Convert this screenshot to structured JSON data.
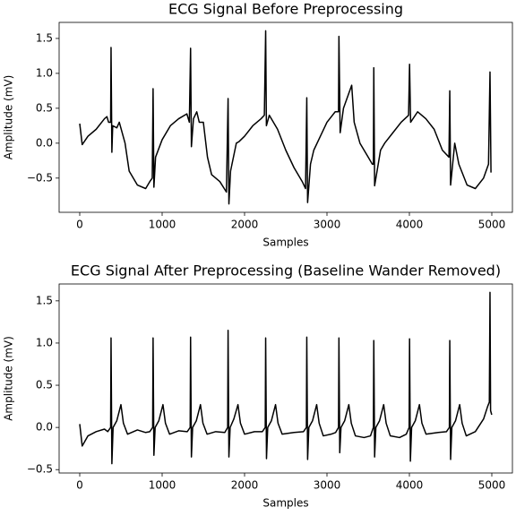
{
  "chart_data": [
    {
      "type": "line",
      "title": "ECG Signal Before Preprocessing",
      "xlabel": "Samples",
      "ylabel": "Amplitude (mV)",
      "color": "#000000",
      "grid": false,
      "xlim": [
        -250,
        5250
      ],
      "xticks": [
        0,
        1000,
        2000,
        3000,
        4000,
        5000
      ],
      "ylim": [
        -0.99,
        1.73
      ],
      "yticks": [
        {
          "value": -0.5,
          "label": "−0.5"
        },
        {
          "value": 0,
          "label": "0.0"
        },
        0.5,
        {
          "value": 1,
          "label": "1.0"
        },
        1.5
      ],
      "x": [
        0,
        30,
        100,
        200,
        300,
        330,
        350,
        375,
        380,
        390,
        400,
        450,
        480,
        550,
        600,
        700,
        800,
        850,
        880,
        890,
        900,
        920,
        1000,
        1100,
        1200,
        1300,
        1330,
        1345,
        1355,
        1380,
        1420,
        1450,
        1500,
        1550,
        1600,
        1700,
        1780,
        1800,
        1810,
        1830,
        1900,
        1930,
        2000,
        2100,
        2200,
        2240,
        2256,
        2265,
        2300,
        2400,
        2500,
        2600,
        2700,
        2740,
        2755,
        2765,
        2800,
        2840,
        2900,
        3000,
        3100,
        3140,
        3145,
        3160,
        3200,
        3300,
        3330,
        3400,
        3500,
        3550,
        3563,
        3568,
        3578,
        3650,
        3700,
        3800,
        3900,
        3990,
        4002,
        4015,
        4100,
        4200,
        4300,
        4400,
        4480,
        4490,
        4500,
        4550,
        4600,
        4700,
        4800,
        4900,
        4960,
        4978,
        4990
      ],
      "values": [
        0.28,
        -0.02,
        0.1,
        0.2,
        0.35,
        0.38,
        0.3,
        0.3,
        1.37,
        -0.13,
        0.25,
        0.22,
        0.3,
        0.0,
        -0.4,
        -0.6,
        -0.65,
        -0.55,
        -0.5,
        0.78,
        -0.63,
        -0.2,
        0.05,
        0.25,
        0.35,
        0.42,
        0.3,
        1.36,
        -0.05,
        0.35,
        0.45,
        0.3,
        0.3,
        -0.2,
        -0.45,
        -0.55,
        -0.7,
        0.64,
        -0.87,
        -0.4,
        0.0,
        0.02,
        0.1,
        0.25,
        0.35,
        0.4,
        1.61,
        0.25,
        0.4,
        0.2,
        -0.1,
        -0.35,
        -0.55,
        -0.65,
        0.65,
        -0.85,
        -0.3,
        -0.1,
        0.05,
        0.3,
        0.45,
        0.45,
        1.53,
        0.15,
        0.5,
        0.83,
        0.3,
        0.0,
        -0.2,
        -0.3,
        -0.3,
        1.08,
        -0.61,
        -0.1,
        0.0,
        0.15,
        0.3,
        0.4,
        1.13,
        0.3,
        0.45,
        0.35,
        0.2,
        -0.1,
        -0.2,
        0.75,
        -0.6,
        0.0,
        -0.3,
        -0.6,
        -0.65,
        -0.5,
        -0.3,
        1.02,
        -0.42
      ]
    },
    {
      "type": "line",
      "title": "ECG Signal After Preprocessing (Baseline Wander Removed)",
      "xlabel": "Samples",
      "ylabel": "Amplitude (mV)",
      "color": "#000000",
      "grid": false,
      "xlim": [
        -250,
        5250
      ],
      "xticks": [
        0,
        1000,
        2000,
        3000,
        4000,
        5000
      ],
      "ylim": [
        -0.54,
        1.7
      ],
      "yticks": [
        {
          "value": -0.5,
          "label": "−0.5"
        },
        {
          "value": 0,
          "label": "0.0"
        },
        0.5,
        {
          "value": 1,
          "label": "1.0"
        },
        1.5
      ],
      "x": [
        0,
        30,
        100,
        200,
        300,
        340,
        375,
        380,
        390,
        405,
        450,
        500,
        530,
        580,
        700,
        800,
        850,
        885,
        890,
        900,
        915,
        960,
        1010,
        1040,
        1090,
        1200,
        1305,
        1340,
        1345,
        1355,
        1370,
        1415,
        1465,
        1495,
        1545,
        1650,
        1760,
        1795,
        1800,
        1810,
        1825,
        1870,
        1920,
        1950,
        2000,
        2120,
        2216,
        2251,
        2256,
        2266,
        2281,
        2326,
        2376,
        2406,
        2456,
        2600,
        2715,
        2750,
        2755,
        2765,
        2780,
        2825,
        2875,
        2905,
        2955,
        3050,
        3105,
        3140,
        3145,
        3155,
        3170,
        3215,
        3265,
        3295,
        3345,
        3450,
        3528,
        3563,
        3568,
        3578,
        3593,
        3638,
        3688,
        3718,
        3768,
        3880,
        3962,
        3997,
        4002,
        4012,
        4027,
        4072,
        4122,
        4152,
        4202,
        4350,
        4450,
        4485,
        4490,
        4500,
        4515,
        4560,
        4610,
        4640,
        4690,
        4800,
        4900,
        4950,
        4970,
        4978,
        4985,
        4999
      ],
      "values": [
        0.04,
        -0.22,
        -0.1,
        -0.05,
        -0.02,
        -0.05,
        0.0,
        1.06,
        -0.43,
        0.0,
        0.08,
        0.27,
        0.05,
        -0.08,
        -0.03,
        -0.06,
        -0.05,
        0.0,
        1.06,
        -0.33,
        0.0,
        0.08,
        0.27,
        0.05,
        -0.08,
        -0.04,
        -0.05,
        0.0,
        1.07,
        -0.35,
        0.0,
        0.08,
        0.27,
        0.05,
        -0.08,
        -0.05,
        -0.06,
        0.0,
        1.15,
        -0.35,
        0.0,
        0.1,
        0.27,
        0.05,
        -0.08,
        -0.05,
        -0.05,
        0.0,
        1.06,
        -0.37,
        0.0,
        0.08,
        0.27,
        0.05,
        -0.08,
        -0.06,
        -0.05,
        0.0,
        1.07,
        -0.38,
        0.0,
        0.08,
        0.27,
        0.05,
        -0.1,
        -0.08,
        -0.06,
        0.0,
        1.06,
        -0.3,
        0.0,
        0.08,
        0.27,
        0.05,
        -0.1,
        -0.12,
        -0.1,
        0.0,
        1.03,
        -0.35,
        0.0,
        0.08,
        0.27,
        0.05,
        -0.1,
        -0.12,
        -0.08,
        0.0,
        1.05,
        -0.4,
        0.0,
        0.08,
        0.27,
        0.05,
        -0.08,
        -0.06,
        -0.05,
        0.0,
        1.03,
        -0.38,
        0.0,
        0.08,
        0.27,
        0.05,
        -0.1,
        -0.05,
        0.1,
        0.25,
        0.3,
        1.6,
        0.2,
        0.15
      ]
    }
  ]
}
